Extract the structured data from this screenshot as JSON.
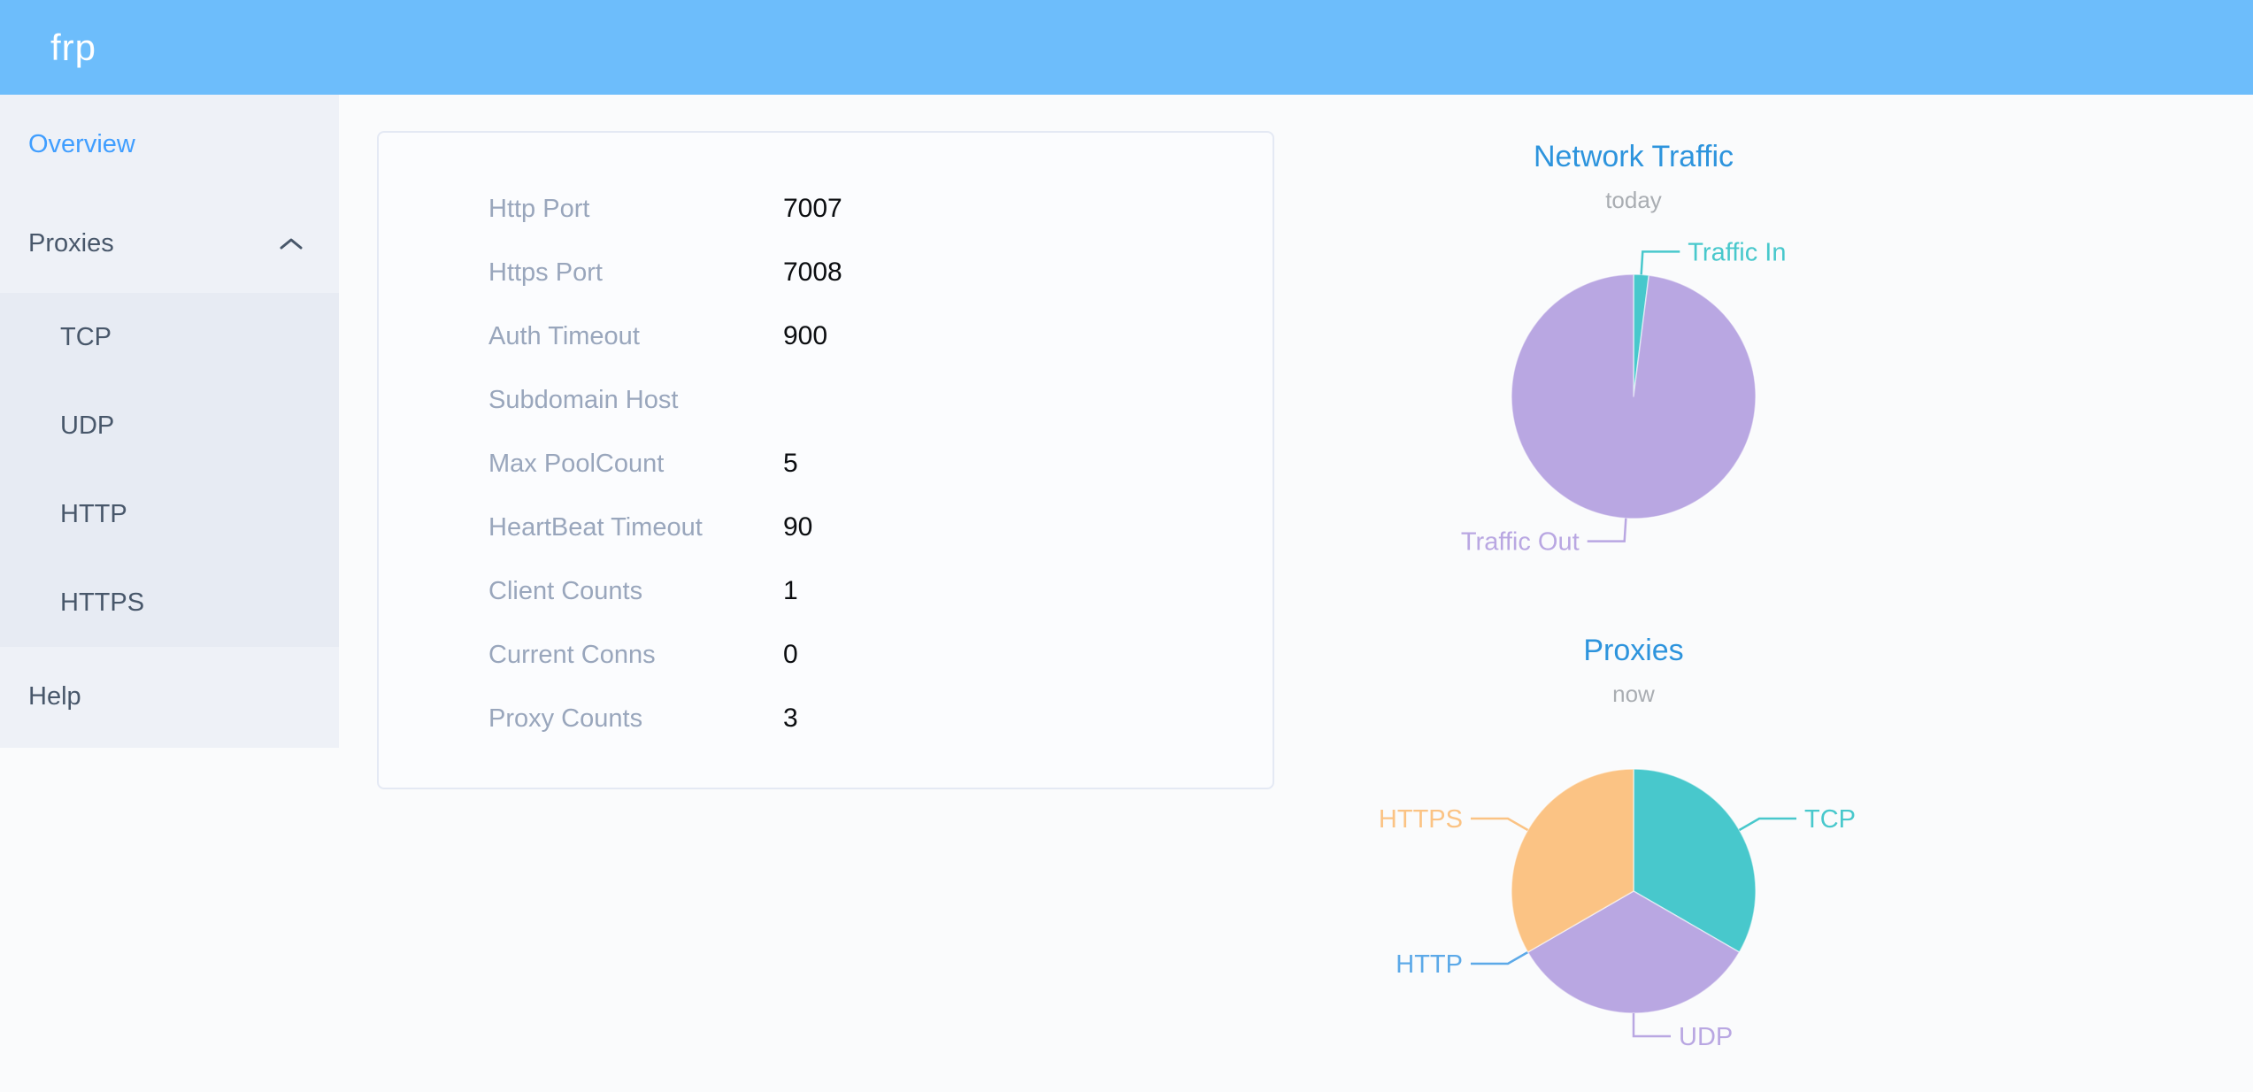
{
  "header": {
    "logo": "frp"
  },
  "sidebar": {
    "overview": "Overview",
    "proxies": "Proxies",
    "submenu": [
      "TCP",
      "UDP",
      "HTTP",
      "HTTPS"
    ],
    "help": "Help"
  },
  "overview_card": {
    "rows": [
      {
        "label": "Http Port",
        "value": "7007"
      },
      {
        "label": "Https Port",
        "value": "7008"
      },
      {
        "label": "Auth Timeout",
        "value": "900"
      },
      {
        "label": "Subdomain Host",
        "value": ""
      },
      {
        "label": "Max PoolCount",
        "value": "5"
      },
      {
        "label": "HeartBeat Timeout",
        "value": "90"
      },
      {
        "label": "Client Counts",
        "value": "1"
      },
      {
        "label": "Current Conns",
        "value": "0"
      },
      {
        "label": "Proxy Counts",
        "value": "3"
      }
    ]
  },
  "chart_data": [
    {
      "type": "pie",
      "title": "Network Traffic",
      "subtitle": "today",
      "legend_position": "callout-labels",
      "series": [
        {
          "name": "Traffic In",
          "value": 2,
          "color": "#48c8cc"
        },
        {
          "name": "Traffic Out",
          "value": 98,
          "color": "#b9a7e2"
        }
      ]
    },
    {
      "type": "pie",
      "title": "Proxies",
      "subtitle": "now",
      "legend_position": "callout-labels",
      "series": [
        {
          "name": "TCP",
          "value": 1,
          "color": "#48c8cc"
        },
        {
          "name": "UDP",
          "value": 1,
          "color": "#b9a7e2"
        },
        {
          "name": "HTTP",
          "value": 0,
          "color": "#5ca9e8"
        },
        {
          "name": "HTTPS",
          "value": 1,
          "color": "#fbc384"
        }
      ]
    }
  ],
  "colors": {
    "header_bg": "#6dbdfb",
    "sidebar_bg": "#eef1f7",
    "submenu_bg": "#e7ebf3",
    "menu_text": "#48576a",
    "menu_active": "#409eff",
    "chart_title": "#2d94dd",
    "label_gray": "#99a6bc"
  }
}
